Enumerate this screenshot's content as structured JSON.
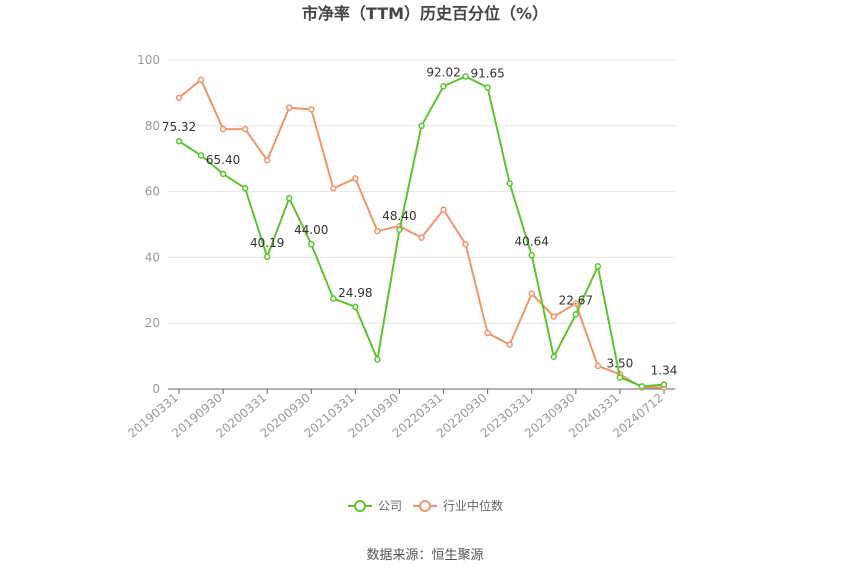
{
  "chart_data": {
    "type": "line",
    "title": "市净率（TTM）历史百分位（%）",
    "x": [
      "20190331",
      "20190630",
      "20190930",
      "20191231",
      "20200331",
      "20200630",
      "20200930",
      "20201231",
      "20210331",
      "20210630",
      "20210930",
      "20211231",
      "20220331",
      "20220630",
      "20220930",
      "20221231",
      "20230331",
      "20230630",
      "20230930",
      "20231231",
      "20240331",
      "20240630",
      "20240712"
    ],
    "x_tick_labels": [
      "20190331",
      "20190930",
      "20200331",
      "20200930",
      "20210331",
      "20210930",
      "20220331",
      "20220930",
      "20230331",
      "20230930",
      "20240331",
      "20240712"
    ],
    "y_ticks": [
      0,
      20,
      40,
      60,
      80,
      100
    ],
    "ylim": [
      0,
      100
    ],
    "series": [
      {
        "name": "公司",
        "color": "#5cc42e",
        "values": [
          75.32,
          71.0,
          65.4,
          61.0,
          40.19,
          58.0,
          44.0,
          27.5,
          24.98,
          9.0,
          48.4,
          80.0,
          92.02,
          95.0,
          91.65,
          62.5,
          40.64,
          9.8,
          22.67,
          37.3,
          3.5,
          0.8,
          1.34
        ],
        "labeled": [
          {
            "i": 0,
            "text": "75.32"
          },
          {
            "i": 2,
            "text": "65.40"
          },
          {
            "i": 4,
            "text": "40.19"
          },
          {
            "i": 6,
            "text": "44.00"
          },
          {
            "i": 8,
            "text": "24.98"
          },
          {
            "i": 10,
            "text": "48.40"
          },
          {
            "i": 12,
            "text": "92.02"
          },
          {
            "i": 14,
            "text": "91.65"
          },
          {
            "i": 16,
            "text": "40.64"
          },
          {
            "i": 18,
            "text": "22.67"
          },
          {
            "i": 20,
            "text": "3.50"
          },
          {
            "i": 22,
            "text": "1.34"
          }
        ]
      },
      {
        "name": "行业中位数",
        "color": "#f0956a",
        "values": [
          88.5,
          94.0,
          79.0,
          79.0,
          69.5,
          85.5,
          85.0,
          61.0,
          64.0,
          48.0,
          49.5,
          46.0,
          54.5,
          44.0,
          17.0,
          13.5,
          29.0,
          22.0,
          26.0,
          7.0,
          4.5,
          0.5,
          0.5
        ]
      }
    ],
    "legend_position": "bottom",
    "grid": true
  },
  "source": "数据来源：恒生聚源"
}
